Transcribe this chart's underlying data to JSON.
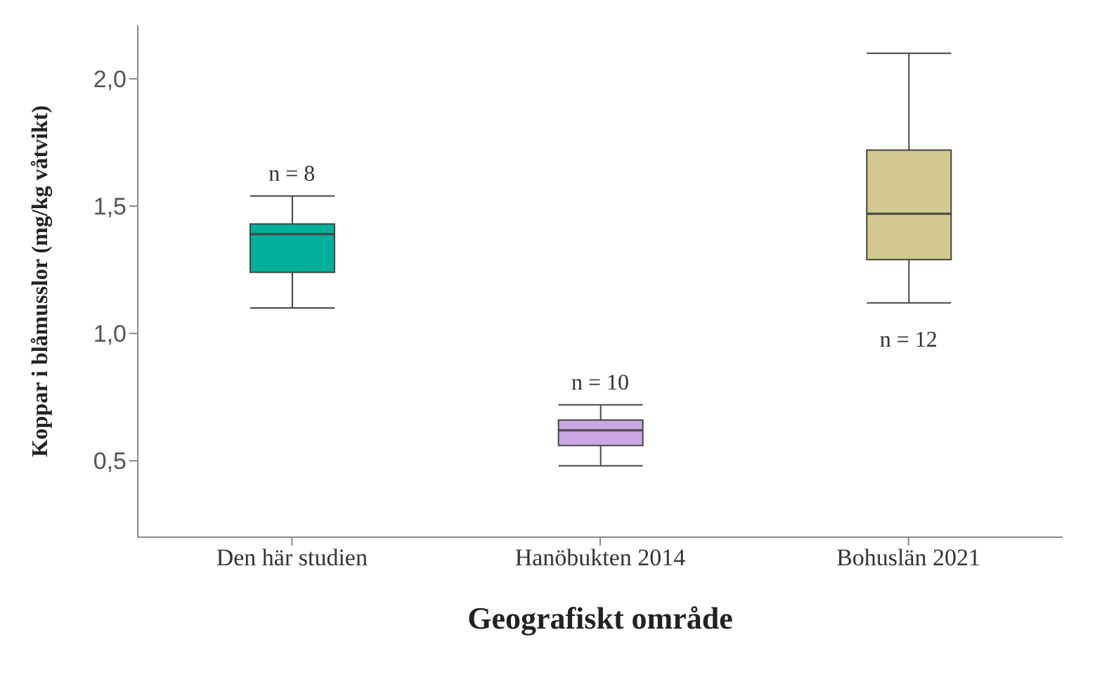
{
  "chart_data": {
    "type": "box",
    "xlabel": "Geografiskt område",
    "ylabel": "Koppar i blåmusslor (mg/kg våtvikt)",
    "categories": [
      "Den här studien",
      "Hanöbukten 2014",
      "Bohuslän 2021"
    ],
    "colors": [
      "#00b09b",
      "#cba8e4",
      "#d1c98f"
    ],
    "boxes": [
      {
        "low": 1.1,
        "q1": 1.24,
        "median": 1.39,
        "q3": 1.43,
        "high": 1.54
      },
      {
        "low": 0.48,
        "q1": 0.56,
        "median": 0.62,
        "q3": 0.66,
        "high": 0.72
      },
      {
        "low": 1.12,
        "q1": 1.29,
        "median": 1.47,
        "q3": 1.72,
        "high": 2.1
      }
    ],
    "ylim": [
      0.2,
      2.21
    ],
    "yticks": [
      {
        "value": 0.5,
        "label": "0,5"
      },
      {
        "value": 1.0,
        "label": "1,0"
      },
      {
        "value": 1.5,
        "label": "1,5"
      },
      {
        "value": 2.0,
        "label": "2,0"
      }
    ],
    "annotations": [
      "n = 8",
      "n = 10",
      "n = 12"
    ],
    "grid": false
  }
}
